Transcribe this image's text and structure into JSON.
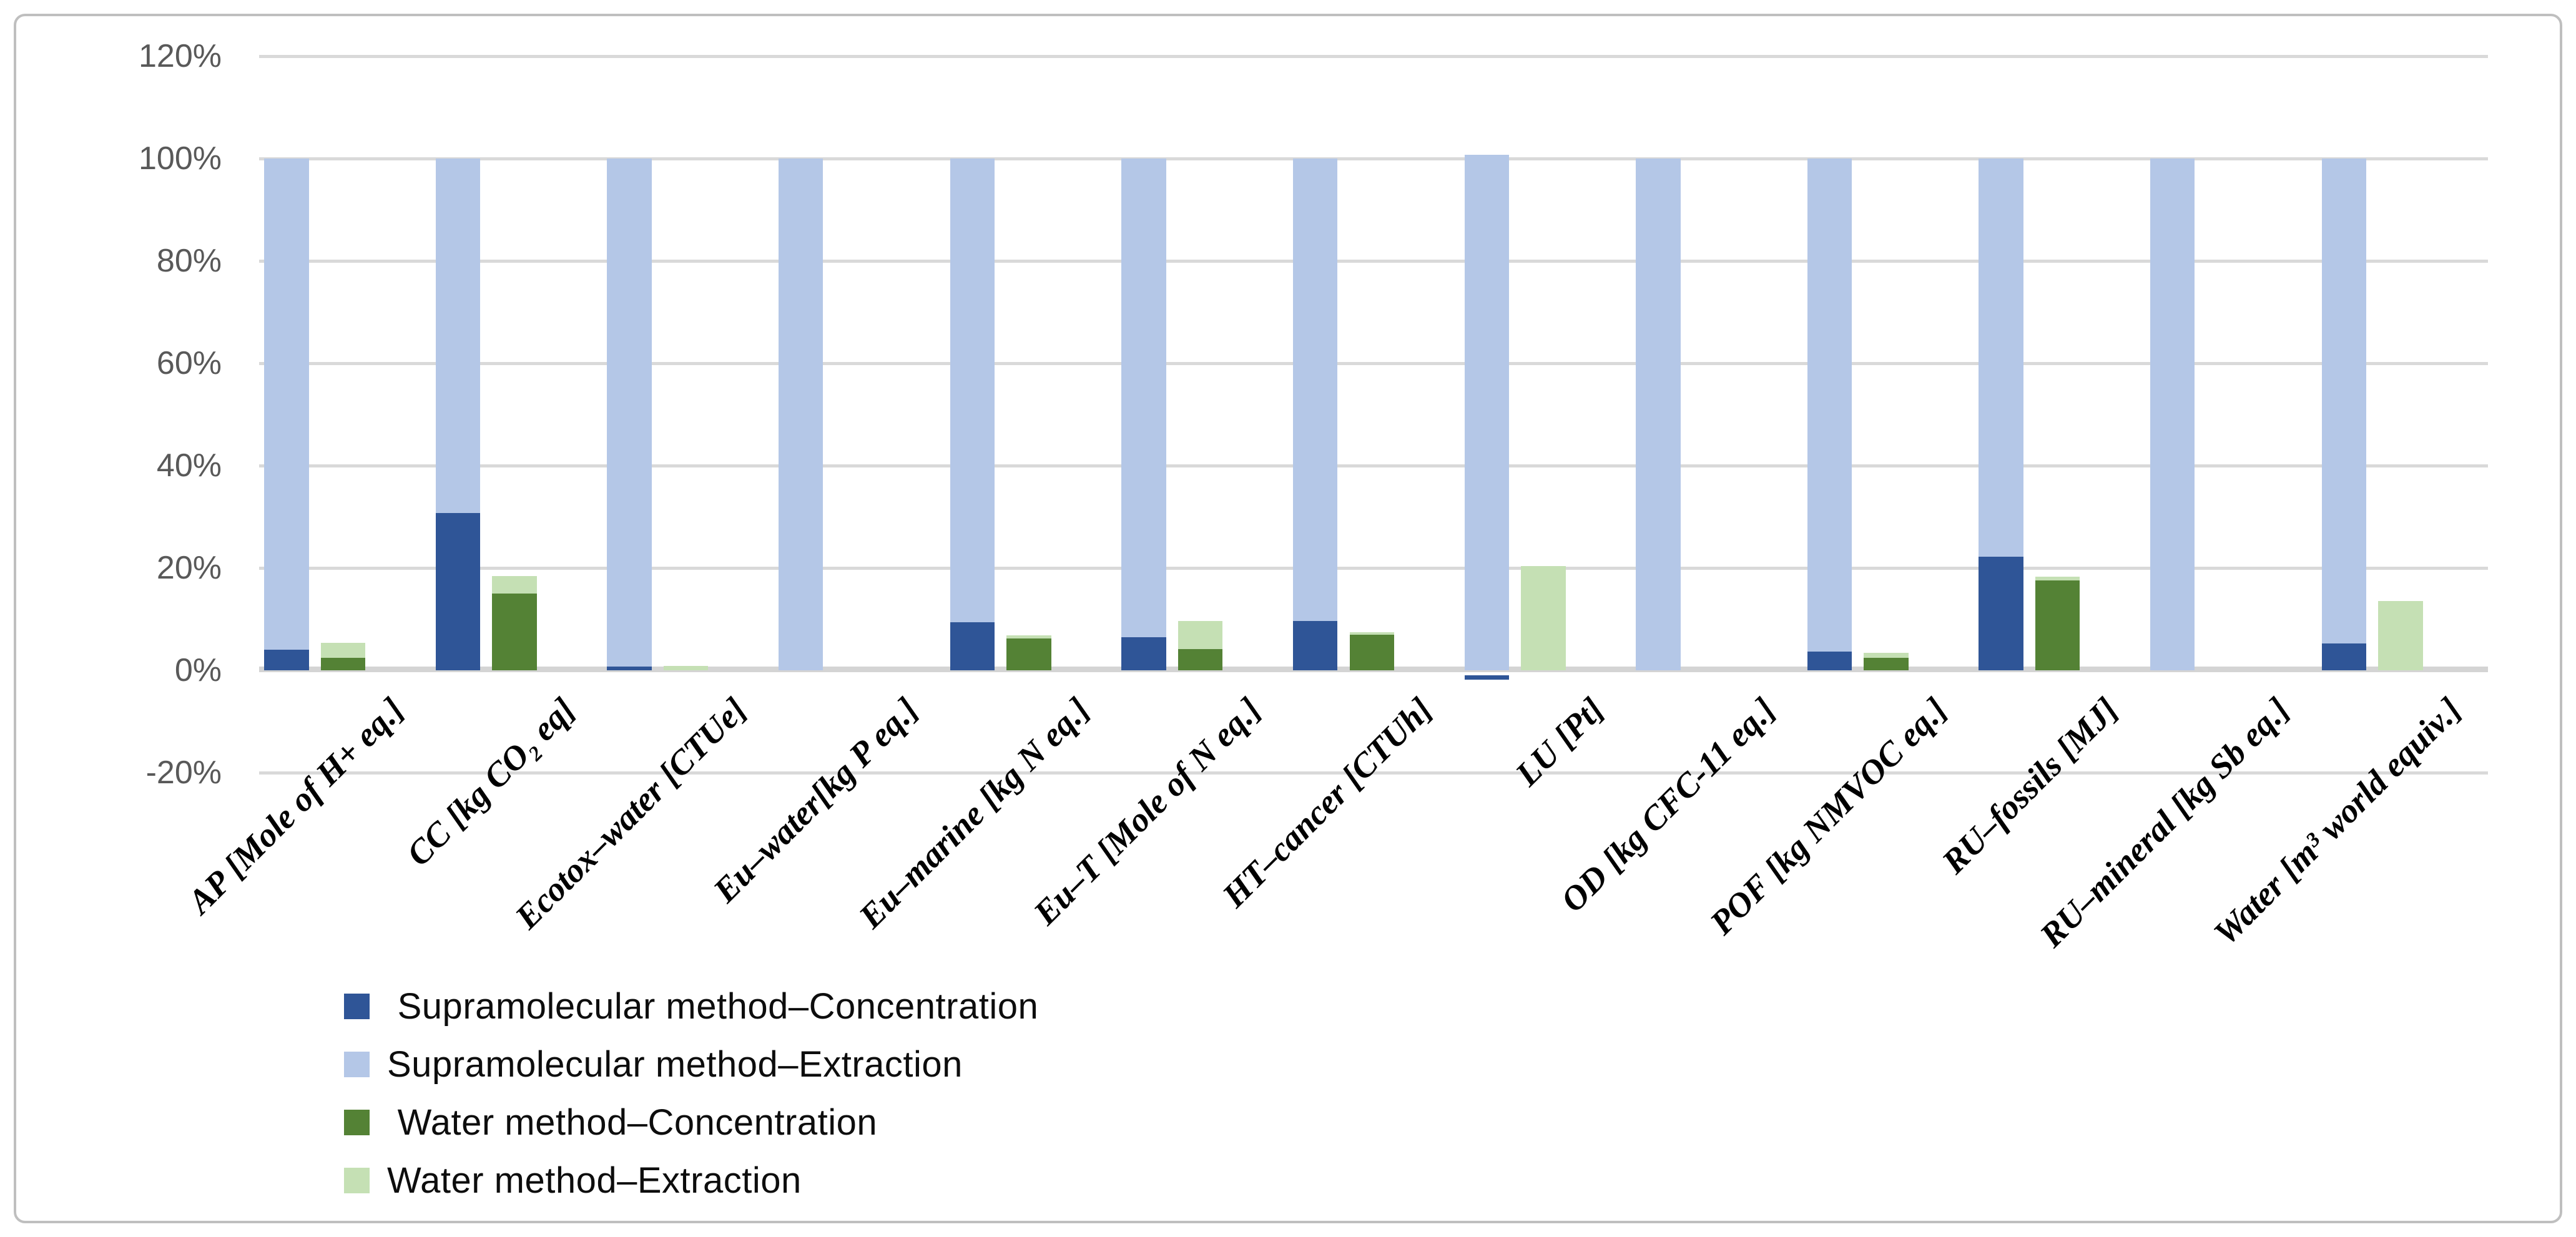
{
  "figure": {
    "background": "#ffffff",
    "border_color": "#bfbfbf",
    "gridline_color": "#d9d9d9",
    "axis_line_color": "#d4d4d4",
    "tick_label_color": "#595959"
  },
  "chart_data": {
    "type": "bar",
    "title": "",
    "xlabel": "",
    "ylabel": "",
    "ylim": [
      -20,
      120
    ],
    "ytick_step": 20,
    "yticks": [
      "120%",
      "100%",
      "80%",
      "60%",
      "40%",
      "20%",
      "0%",
      "-20%"
    ],
    "grid": true,
    "legend_position": "bottom-left",
    "bar_style": "paired-overlap: Extraction series drawn behind Concentration series; blue pair = Supramolecular method, green pair = Water method",
    "categories": [
      "AP [Mole of H+ eq.]",
      "CC [kg CO₂ eq]",
      "Ecotox–water [CTUe]",
      "Eu–water[kg P eq.]",
      "Eu–marine [kg N eq.]",
      "Eu–T [Mole of N eq.]",
      "HT–cancer [CTUh]",
      "LU [Pt]",
      "OD [kg CFC-11 eq.]",
      "POF [kg NMVOC eq.]",
      "RU–fossils [MJ]",
      "RU–mineral [kg Sb eq.]",
      "Water [m³ world equiv.]"
    ],
    "series": [
      {
        "name": "Supramolecular method–Concentration",
        "color": "#2F5597",
        "values": [
          4.0,
          30.7,
          0.7,
          0,
          9.4,
          6.5,
          9.6,
          -0.8,
          0,
          3.7,
          22.2,
          0,
          5.2
        ]
      },
      {
        "name": "Supramolecular method–Extraction",
        "color": "#B4C7E7",
        "values": [
          100,
          100,
          100,
          100,
          100,
          100,
          100,
          100.7,
          100,
          100,
          100,
          100,
          100
        ]
      },
      {
        "name": "Water method–Concentration",
        "color": "#548235",
        "values": [
          2.5,
          15.0,
          0,
          0,
          6.2,
          4.2,
          7.0,
          0,
          0,
          2.4,
          17.6,
          0,
          0
        ]
      },
      {
        "name": "Water method–Extraction",
        "color": "#C5E0B4",
        "values": [
          5.4,
          18.4,
          0.8,
          0,
          6.8,
          9.6,
          7.5,
          20.4,
          0,
          3.4,
          18.3,
          0,
          13.5
        ]
      }
    ]
  },
  "legend": {
    "items": [
      {
        "label": " Supramolecular method–Concentration",
        "color": "#2F5597"
      },
      {
        "label": "Supramolecular method–Extraction",
        "color": "#B4C7E7"
      },
      {
        "label": " Water method–Concentration",
        "color": "#548235"
      },
      {
        "label": "Water method–Extraction",
        "color": "#C5E0B4"
      }
    ]
  }
}
